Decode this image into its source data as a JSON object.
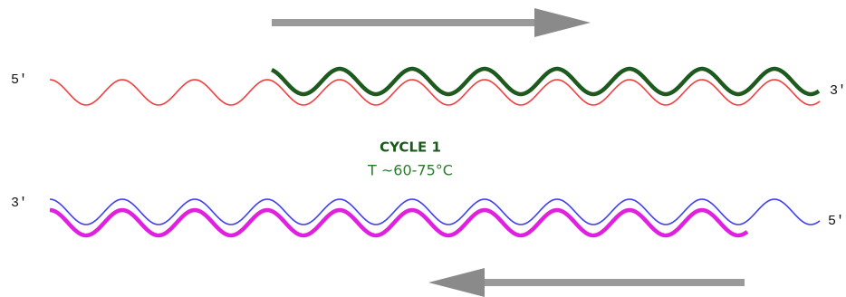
{
  "strands": {
    "top_left_label": "5'",
    "top_right_label": "3'",
    "bottom_left_label": "3'",
    "bottom_right_label": "5'"
  },
  "cycle": {
    "title": "CYCLE 1",
    "temperature": "T   ~60-75°C"
  }
}
